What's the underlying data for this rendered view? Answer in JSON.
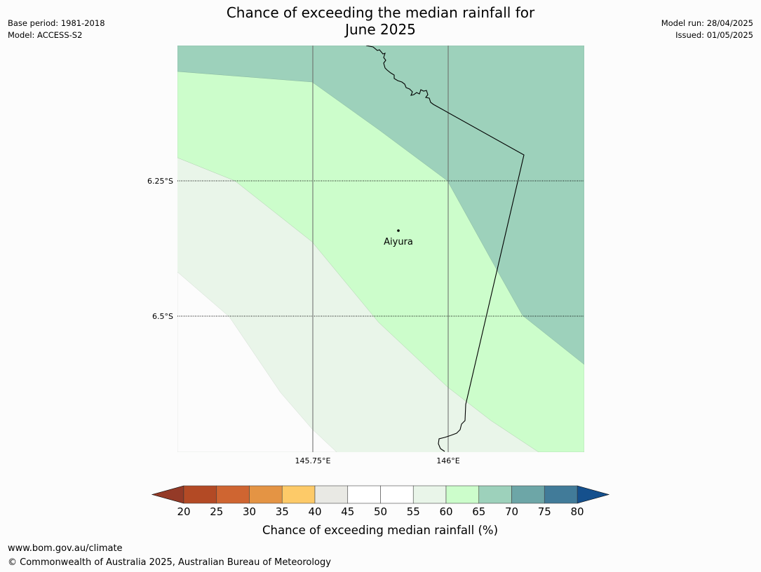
{
  "title": {
    "line1": "Chance of exceeding the median rainfall for",
    "line2": "June 2025"
  },
  "meta_left": {
    "base_period": "Base period: 1981-2018",
    "model": "Model: ACCESS-S2"
  },
  "meta_right": {
    "model_run": "Model run: 28/04/2025",
    "issued": "Issued: 01/05/2025"
  },
  "map": {
    "lat_labels": [
      "6.25°S",
      "6.5°S"
    ],
    "lon_labels": [
      "145.75°E",
      "146°E"
    ],
    "place": "Aiyura"
  },
  "colorbar": {
    "ticks": [
      "20",
      "25",
      "30",
      "35",
      "40",
      "45",
      "50",
      "55",
      "60",
      "65",
      "70",
      "75",
      "80"
    ],
    "colors": [
      "#b34a25",
      "#cf6531",
      "#e49444",
      "#fdca68",
      "#e9e9e4",
      "#ffffff",
      "#ffffff",
      "#e9f5e9",
      "#ccfdcb",
      "#9dd1bb",
      "#6da6a7",
      "#417b99"
    ],
    "under_color": "#943a27",
    "over_color": "#15508d",
    "label": "Chance of exceeding median rainfall (%)"
  },
  "footer": {
    "url": "www.bom.gov.au/climate",
    "copyright": "© Commonwealth of Australia 2025, Australian Bureau of Meteorology"
  }
}
